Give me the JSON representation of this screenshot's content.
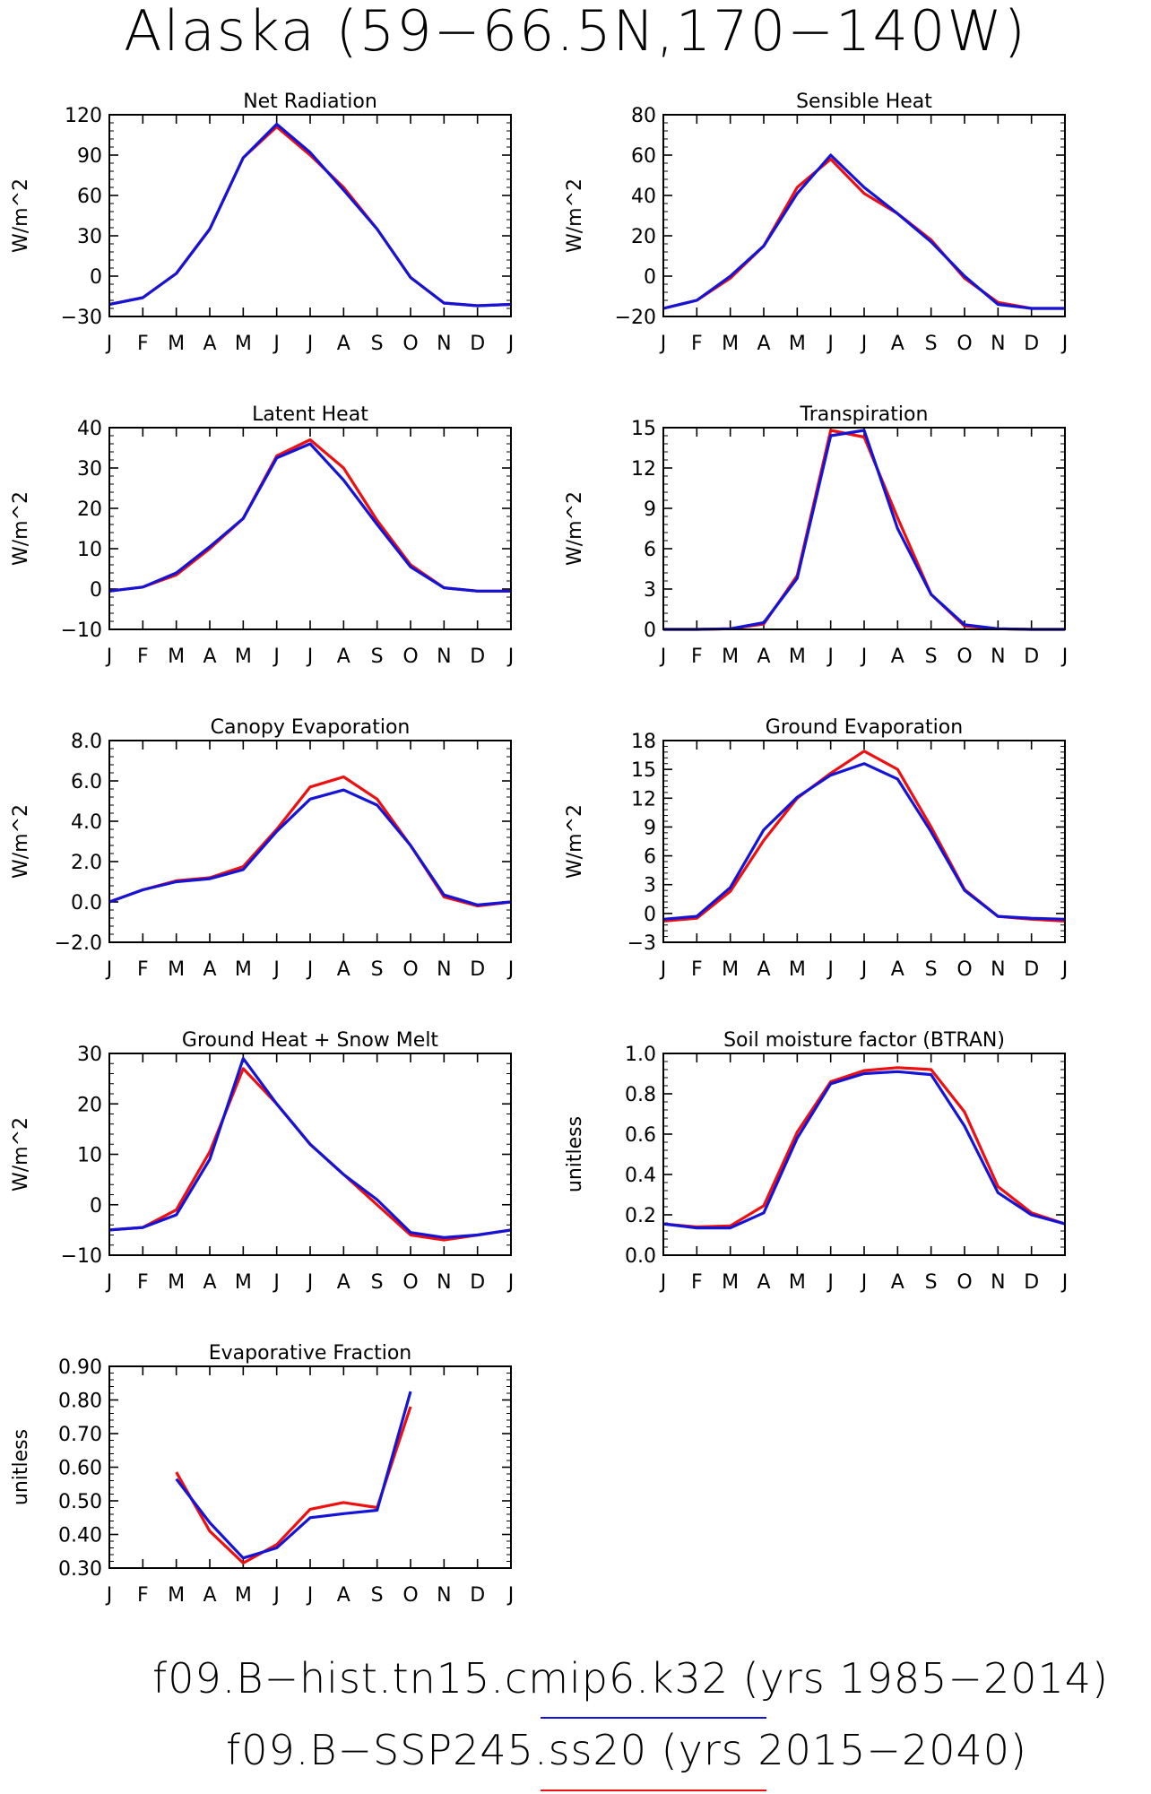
{
  "title": "Alaska (59−66.5N,170−140W)",
  "colors": {
    "hist": "#1414d8",
    "ssp": "#ee1010"
  },
  "legend": [
    {
      "label": "f09.B−hist.tn15.cmip6.k32 (yrs 1985−2014)",
      "color": "#1414d8"
    },
    {
      "label": "f09.B−SSP245.ss20 (yrs 2015−2040)",
      "color": "#ee1010"
    }
  ],
  "chart_data": [
    {
      "type": "line",
      "title": "Net Radiation",
      "ylabel": "W/m^2",
      "x": [
        "J",
        "F",
        "M",
        "A",
        "M",
        "J",
        "J",
        "A",
        "S",
        "O",
        "N",
        "D",
        "J"
      ],
      "ylim": [
        -30,
        120
      ],
      "yticks": [
        "120",
        "90",
        "60",
        "30",
        "0",
        "−30"
      ],
      "ytick_values": [
        120,
        90,
        60,
        30,
        0,
        -30
      ],
      "series": [
        {
          "color": "#ee1010",
          "values": [
            -21,
            -16,
            2,
            35,
            88,
            111,
            90,
            66,
            35,
            -1,
            -20,
            -22,
            -21
          ]
        },
        {
          "color": "#1414d8",
          "values": [
            -21,
            -16,
            2,
            35,
            88,
            113,
            92,
            64,
            35,
            -1,
            -20,
            -22,
            -21
          ]
        }
      ]
    },
    {
      "type": "line",
      "title": "Sensible Heat",
      "ylabel": "W/m^2",
      "x": [
        "J",
        "F",
        "M",
        "A",
        "M",
        "J",
        "J",
        "A",
        "S",
        "O",
        "N",
        "D",
        "J"
      ],
      "ylim": [
        -20,
        80
      ],
      "yticks": [
        "80",
        "60",
        "40",
        "20",
        "0",
        "−20"
      ],
      "ytick_values": [
        80,
        60,
        40,
        20,
        0,
        -20
      ],
      "series": [
        {
          "color": "#ee1010",
          "values": [
            -16,
            -12,
            -1,
            15,
            44,
            58,
            41,
            31,
            18,
            -1,
            -13,
            -16,
            -16
          ]
        },
        {
          "color": "#1414d8",
          "values": [
            -16,
            -12,
            0,
            15,
            41,
            60,
            44,
            31,
            17,
            0,
            -14,
            -16,
            -16
          ]
        }
      ]
    },
    {
      "type": "line",
      "title": "Latent Heat",
      "ylabel": "W/m^2",
      "x": [
        "J",
        "F",
        "M",
        "A",
        "M",
        "J",
        "J",
        "A",
        "S",
        "O",
        "N",
        "D",
        "J"
      ],
      "ylim": [
        -10,
        40
      ],
      "yticks": [
        "40",
        "30",
        "20",
        "10",
        "0",
        "−10"
      ],
      "ytick_values": [
        40,
        30,
        20,
        10,
        0,
        -10
      ],
      "series": [
        {
          "color": "#ee1010",
          "values": [
            -0.5,
            0.5,
            3.5,
            10,
            17.5,
            33,
            37,
            30,
            17,
            6,
            0.3,
            -0.5,
            -0.5
          ]
        },
        {
          "color": "#1414d8",
          "values": [
            -0.5,
            0.5,
            4,
            10.5,
            17.5,
            32.5,
            36,
            27,
            16,
            5.5,
            0.3,
            -0.5,
            -0.5
          ]
        }
      ]
    },
    {
      "type": "line",
      "title": "Transpiration",
      "ylabel": "W/m^2",
      "x": [
        "J",
        "F",
        "M",
        "A",
        "M",
        "J",
        "J",
        "A",
        "S",
        "O",
        "N",
        "D",
        "J"
      ],
      "ylim": [
        0,
        15
      ],
      "yticks": [
        "15",
        "12",
        "9",
        "6",
        "3",
        "0"
      ],
      "ytick_values": [
        15,
        12,
        9,
        6,
        3,
        0
      ],
      "series": [
        {
          "color": "#ee1010",
          "values": [
            0,
            0,
            0.05,
            0.4,
            4.0,
            14.8,
            14.3,
            8.3,
            2.6,
            0.25,
            0.05,
            0,
            0
          ]
        },
        {
          "color": "#1414d8",
          "values": [
            0,
            0,
            0.05,
            0.5,
            3.8,
            14.4,
            14.8,
            7.5,
            2.6,
            0.35,
            0.05,
            0,
            0
          ]
        }
      ]
    },
    {
      "type": "line",
      "title": "Canopy Evaporation",
      "ylabel": "W/m^2",
      "x": [
        "J",
        "F",
        "M",
        "A",
        "M",
        "J",
        "J",
        "A",
        "S",
        "O",
        "N",
        "D",
        "J"
      ],
      "ylim": [
        -2,
        8
      ],
      "yticks": [
        "8.0",
        "6.0",
        "4.0",
        "2.0",
        "0.0",
        "−2.0"
      ],
      "ytick_values": [
        8,
        6,
        4,
        2,
        0,
        -2
      ],
      "series": [
        {
          "color": "#ee1010",
          "values": [
            0,
            0.6,
            1.05,
            1.2,
            1.75,
            3.6,
            5.7,
            6.2,
            5.1,
            2.8,
            0.25,
            -0.2,
            0
          ]
        },
        {
          "color": "#1414d8",
          "values": [
            0,
            0.6,
            1.0,
            1.15,
            1.6,
            3.5,
            5.1,
            5.55,
            4.8,
            2.8,
            0.35,
            -0.15,
            0
          ]
        }
      ]
    },
    {
      "type": "line",
      "title": "Ground Evaporation",
      "ylabel": "W/m^2",
      "x": [
        "J",
        "F",
        "M",
        "A",
        "M",
        "J",
        "J",
        "A",
        "S",
        "O",
        "N",
        "D",
        "J"
      ],
      "ylim": [
        -3,
        18
      ],
      "yticks": [
        "18",
        "15",
        "12",
        "9",
        "6",
        "3",
        "0",
        "−3"
      ],
      "ytick_values": [
        18,
        15,
        12,
        9,
        6,
        3,
        0,
        -3
      ],
      "series": [
        {
          "color": "#ee1010",
          "values": [
            -0.8,
            -0.5,
            2.3,
            7.6,
            12,
            14.6,
            16.9,
            15,
            9,
            2.5,
            -0.3,
            -0.6,
            -0.8
          ]
        },
        {
          "color": "#1414d8",
          "values": [
            -0.6,
            -0.3,
            2.7,
            8.7,
            12.1,
            14.4,
            15.6,
            14,
            8.5,
            2.4,
            -0.3,
            -0.5,
            -0.6
          ]
        }
      ]
    },
    {
      "type": "line",
      "title": "Ground Heat + Snow Melt",
      "ylabel": "W/m^2",
      "x": [
        "J",
        "F",
        "M",
        "A",
        "M",
        "J",
        "J",
        "A",
        "S",
        "O",
        "N",
        "D",
        "J"
      ],
      "ylim": [
        -10,
        30
      ],
      "yticks": [
        "30",
        "20",
        "10",
        "0",
        "−10"
      ],
      "ytick_values": [
        30,
        20,
        10,
        0,
        -10
      ],
      "series": [
        {
          "color": "#ee1010",
          "values": [
            -5,
            -4.5,
            -1,
            10.5,
            27,
            20,
            12,
            6,
            0,
            -6,
            -7,
            -6,
            -5
          ]
        },
        {
          "color": "#1414d8",
          "values": [
            -5,
            -4.5,
            -2,
            9,
            29,
            20,
            12,
            6,
            1,
            -5.5,
            -6.5,
            -6,
            -5
          ]
        }
      ]
    },
    {
      "type": "line",
      "title": "Soil moisture factor (BTRAN)",
      "ylabel": "unitless",
      "x": [
        "J",
        "F",
        "M",
        "A",
        "M",
        "J",
        "J",
        "A",
        "S",
        "O",
        "N",
        "D",
        "J"
      ],
      "ylim": [
        0,
        1
      ],
      "yticks": [
        "1.0",
        "0.8",
        "0.6",
        "0.4",
        "0.2",
        "0.0"
      ],
      "ytick_values": [
        1,
        0.8,
        0.6,
        0.4,
        0.2,
        0
      ],
      "series": [
        {
          "color": "#ee1010",
          "values": [
            0.155,
            0.14,
            0.145,
            0.245,
            0.61,
            0.86,
            0.915,
            0.93,
            0.92,
            0.71,
            0.34,
            0.21,
            0.155
          ]
        },
        {
          "color": "#1414d8",
          "values": [
            0.155,
            0.135,
            0.135,
            0.21,
            0.58,
            0.85,
            0.9,
            0.91,
            0.895,
            0.64,
            0.31,
            0.2,
            0.155
          ]
        }
      ]
    },
    {
      "type": "line",
      "title": "Evaporative Fraction",
      "ylabel": "unitless",
      "x": [
        "J",
        "F",
        "M",
        "A",
        "M",
        "J",
        "J",
        "A",
        "S",
        "O",
        "N",
        "D",
        "J"
      ],
      "ylim": [
        0.3,
        0.9
      ],
      "yticks": [
        "0.90",
        "0.80",
        "0.70",
        "0.60",
        "0.50",
        "0.40",
        "0.30"
      ],
      "ytick_values": [
        0.9,
        0.8,
        0.7,
        0.6,
        0.5,
        0.4,
        0.3
      ],
      "series": [
        {
          "color": "#ee1010",
          "values": [
            null,
            null,
            0.585,
            0.41,
            0.315,
            0.37,
            0.475,
            0.495,
            0.48,
            0.78,
            null,
            null,
            null
          ]
        },
        {
          "color": "#1414d8",
          "values": [
            null,
            null,
            0.565,
            0.435,
            0.33,
            0.36,
            0.45,
            0.462,
            0.472,
            0.825,
            null,
            null,
            null
          ]
        }
      ]
    }
  ]
}
